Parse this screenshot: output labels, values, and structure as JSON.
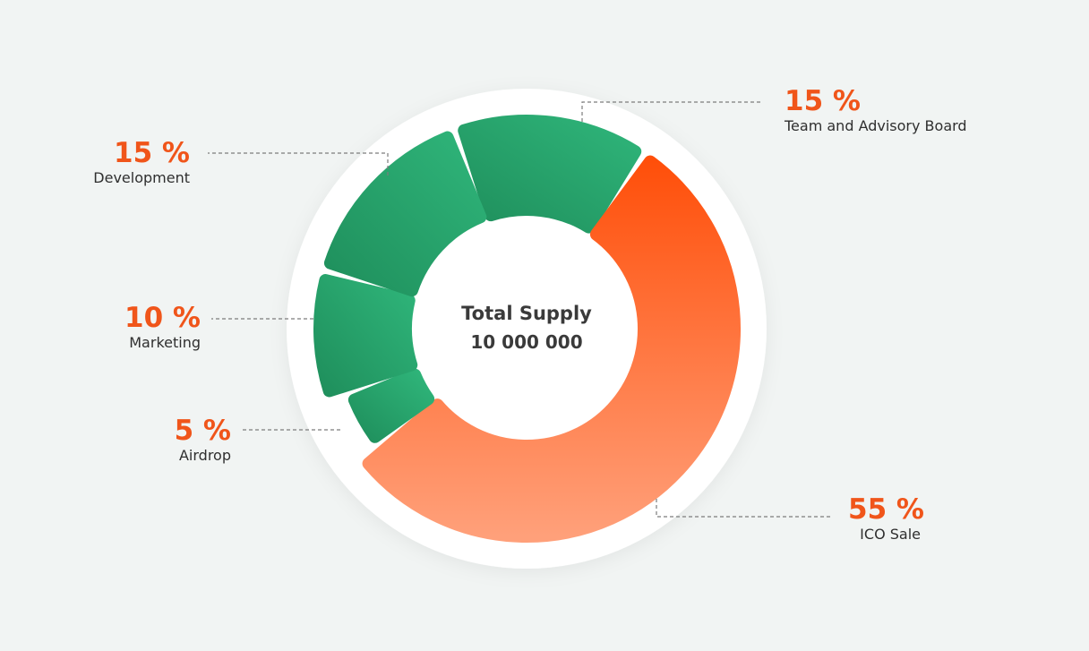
{
  "chart_data": {
    "type": "pie",
    "center": {
      "title": "Total Supply",
      "value": "10 000 000"
    },
    "slices": [
      {
        "label": "Team and Advisory Board",
        "value": 15,
        "display": "15 %"
      },
      {
        "label": "ICO Sale",
        "value": 55,
        "display": "55 %"
      },
      {
        "label": "Airdrop",
        "value": 5,
        "display": "5 %"
      },
      {
        "label": "Marketing",
        "value": 10,
        "display": "10 %"
      },
      {
        "label": "Development",
        "value": 15,
        "display": "15 %"
      }
    ],
    "colors": {
      "green_dark": "#1f8f5c",
      "green_light": "#2fb57a",
      "orange_dark": "#ff4f0a",
      "orange_light": "#ffa07a",
      "label_accent": "#f0551a"
    }
  }
}
